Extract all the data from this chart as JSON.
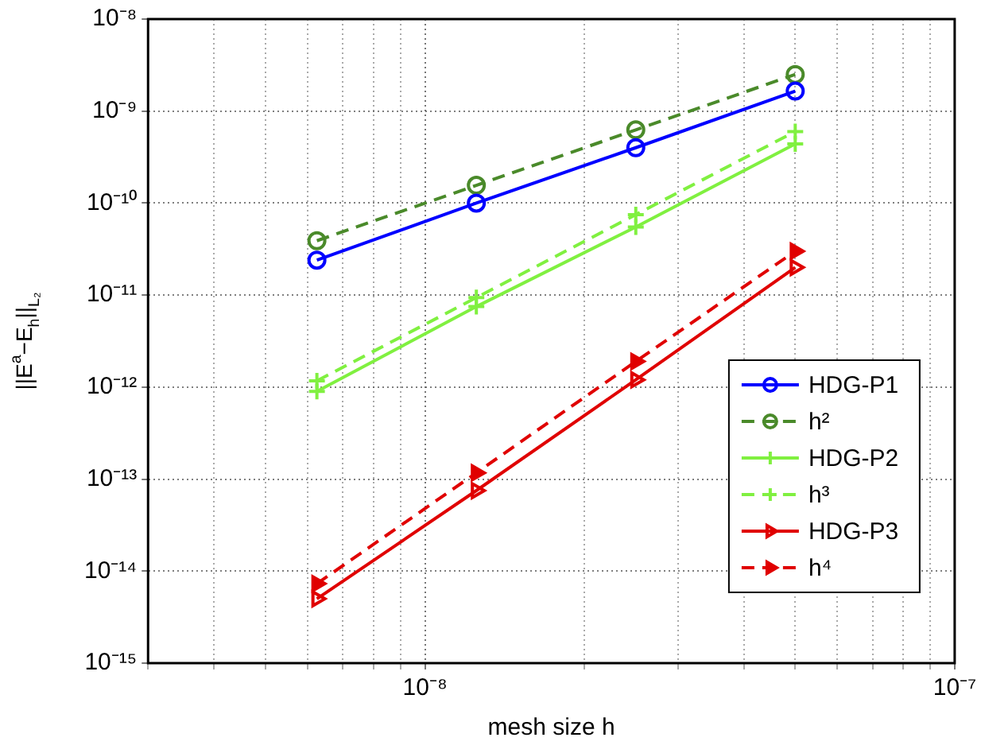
{
  "chart_data": {
    "type": "line",
    "xlabel": "mesh size h",
    "ylabel": "||E$^{a}$−E$_{h}$||$_{L₂}$",
    "log": "xy",
    "grid": true,
    "legend": "right",
    "x": [
      6.25e-09,
      1.25e-08,
      2.5e-08,
      5e-08
    ],
    "xlim": [
      3e-09,
      1e-07
    ],
    "xticks": [
      {
        "value": 3e-09,
        "label": null
      },
      {
        "value": 4e-09,
        "label": null
      },
      {
        "value": 5e-09,
        "label": null
      },
      {
        "value": 6e-09,
        "label": null
      },
      {
        "value": 7e-09,
        "label": null
      },
      {
        "value": 8e-09,
        "label": null
      },
      {
        "value": 9e-09,
        "label": null
      },
      {
        "value": 1e-08,
        "label": "10⁻⁸"
      },
      {
        "value": 2e-08,
        "label": null
      },
      {
        "value": 3e-08,
        "label": null
      },
      {
        "value": 4e-08,
        "label": null
      },
      {
        "value": 5e-08,
        "label": null
      },
      {
        "value": 6e-08,
        "label": null
      },
      {
        "value": 7e-08,
        "label": null
      },
      {
        "value": 8e-08,
        "label": null
      },
      {
        "value": 9e-08,
        "label": null
      },
      {
        "value": 1e-07,
        "label": "10⁻⁷"
      }
    ],
    "ylim": [
      1e-15,
      1e-08
    ],
    "yticks": [
      {
        "value": 1e-15,
        "label": "10⁻¹⁵"
      },
      {
        "value": 1e-14,
        "label": "10⁻¹⁴"
      },
      {
        "value": 1e-13,
        "label": "10⁻¹³"
      },
      {
        "value": 1e-12,
        "label": "10⁻¹²"
      },
      {
        "value": 1e-11,
        "label": "10⁻¹¹"
      },
      {
        "value": 1e-10,
        "label": "10⁻¹⁰"
      },
      {
        "value": 1e-09,
        "label": "10⁻⁹"
      },
      {
        "value": 1e-08,
        "label": "10⁻⁸"
      }
    ],
    "series": [
      {
        "name": "HDG-P1",
        "color": "#0000ff",
        "marker": "circle",
        "line_style": "solid",
        "values": [
          2.4e-11,
          1e-10,
          4e-10,
          1.65e-09
        ]
      },
      {
        "name": "h²",
        "color": "#4a8a2a",
        "marker": "circle",
        "line_style": "dashed",
        "values": [
          3.9e-11,
          1.56e-10,
          6.25e-10,
          2.5e-09
        ]
      },
      {
        "name": "HDG-P2",
        "color": "#80f040",
        "marker": "cross",
        "line_style": "solid",
        "values": [
          9e-13,
          7.5e-12,
          5.5e-11,
          4.4e-10
        ]
      },
      {
        "name": "h³",
        "color": "#80f040",
        "marker": "cross",
        "line_style": "dashed",
        "values": [
          1.17e-12,
          9.4e-12,
          7.5e-11,
          6e-10
        ]
      },
      {
        "name": "HDG-P3",
        "color": "#e00000",
        "marker": "triangle",
        "line_style": "solid",
        "values": [
          5e-15,
          7.5e-14,
          1.2e-12,
          2e-11
        ]
      },
      {
        "name": "h⁴",
        "color": "#e00000",
        "marker": "triangle",
        "line_style": "dashed",
        "values": [
          7.3e-15,
          1.17e-13,
          1.9e-12,
          3e-11
        ]
      }
    ]
  }
}
